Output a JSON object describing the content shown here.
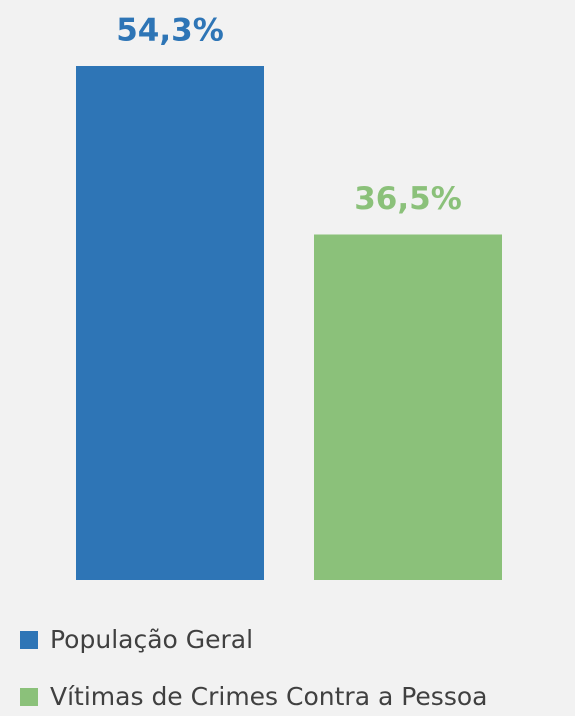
{
  "chart_data": {
    "type": "bar",
    "series": [
      {
        "name": "População Geral",
        "color": "#2e75b6",
        "values": [
          54.3
        ],
        "value_labels": [
          "54,3%"
        ]
      },
      {
        "name": "Vítimas de Crimes Contra a Pessoa",
        "color": "#8bc17a",
        "values": [
          36.5
        ],
        "value_labels": [
          "36,5%"
        ]
      }
    ]
  }
}
